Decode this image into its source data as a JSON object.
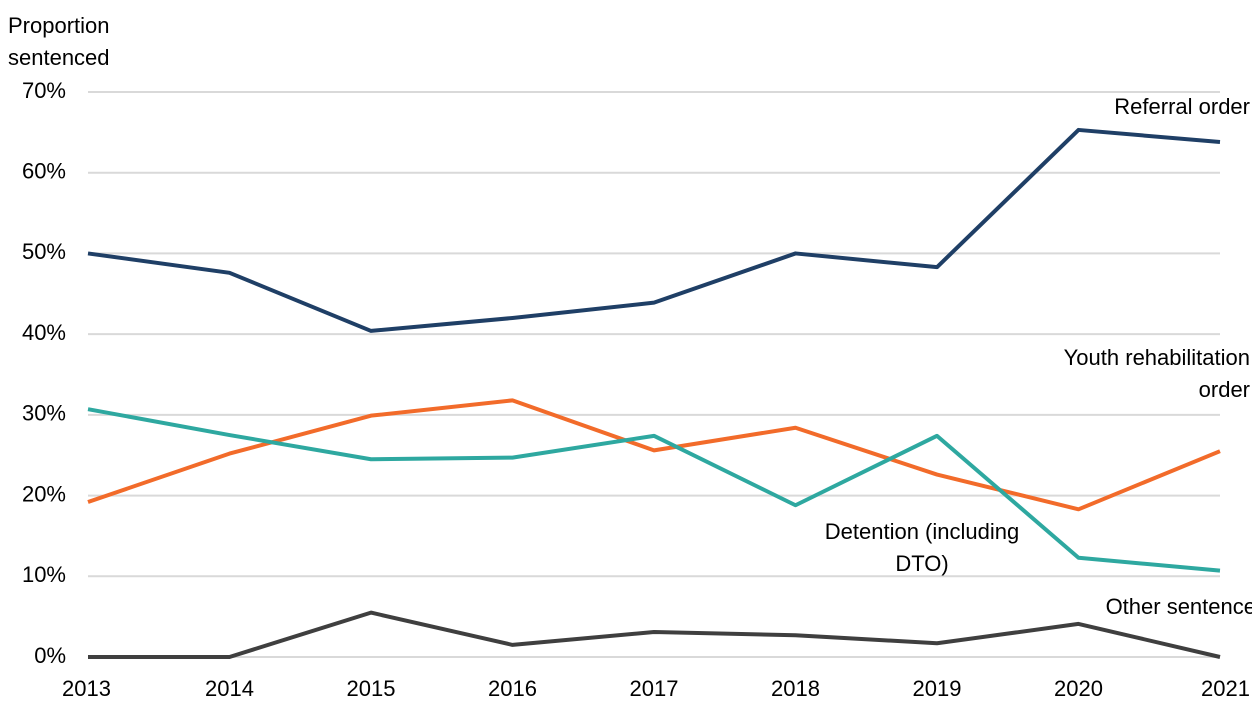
{
  "chart_data": {
    "type": "line",
    "y_label": "Proportion sentenced",
    "x": [
      "2013",
      "2014",
      "2015",
      "2016",
      "2017",
      "2018",
      "2019",
      "2020",
      "2021"
    ],
    "series": [
      {
        "name": "Referral order",
        "color": "#1f3f66",
        "values": [
          50.0,
          47.6,
          40.4,
          42.0,
          43.9,
          50.0,
          48.3,
          65.3,
          63.8
        ]
      },
      {
        "name": "Youth rehabilitation order",
        "color": "#f26b2a",
        "values": [
          19.2,
          25.2,
          29.9,
          31.8,
          25.6,
          28.4,
          22.6,
          18.3,
          25.5
        ]
      },
      {
        "name": "Detention (including DTO)",
        "color": "#2ea8a0",
        "values": [
          30.7,
          27.5,
          24.5,
          24.7,
          27.4,
          18.8,
          27.4,
          12.3,
          10.7
        ]
      },
      {
        "name": "Other sentence",
        "color": "#3f3f3f",
        "values": [
          0,
          0,
          5.5,
          1.5,
          3.1,
          2.7,
          1.7,
          4.1,
          0
        ]
      }
    ],
    "ylim": [
      0,
      70
    ],
    "yticks": [
      {
        "value": 0,
        "label": "0%"
      },
      {
        "value": 10,
        "label": "10%"
      },
      {
        "value": 20,
        "label": "20%"
      },
      {
        "value": 30,
        "label": "30%"
      },
      {
        "value": 40,
        "label": "40%"
      },
      {
        "value": 50,
        "label": "50%"
      },
      {
        "value": 60,
        "label": "60%"
      },
      {
        "value": 70,
        "label": "70%"
      }
    ],
    "grid": true
  }
}
